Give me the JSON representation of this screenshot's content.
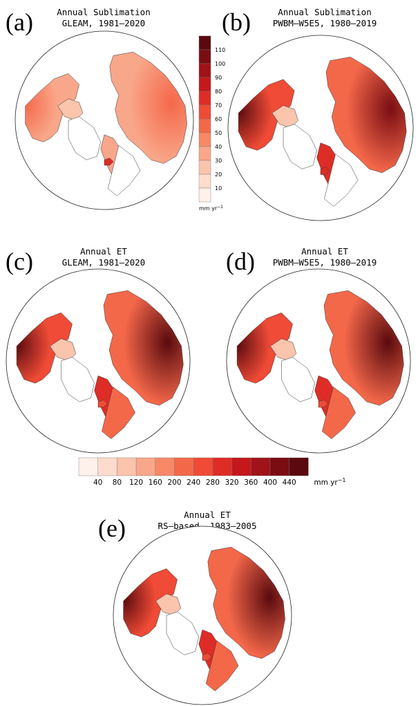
{
  "panels": {
    "a": {
      "letter": "(a)",
      "title1": "Annual Sublimation",
      "title2": "GLEAM, 1981–2020"
    },
    "b": {
      "letter": "(b)",
      "title1": "Annual Sublimation",
      "title2": "PWBM–W5E5, 1980–2019"
    },
    "c": {
      "letter": "(c)",
      "title1": "Annual ET",
      "title2": "GLEAM, 1981–2020"
    },
    "d": {
      "letter": "(d)",
      "title1": "Annual ET",
      "title2": "PWBM–W5E5, 1980–2019"
    },
    "e": {
      "letter": "(e)",
      "title1": "Annual ET",
      "title2": "RS–based, 1983–2005"
    }
  },
  "sublimation_colorbar": {
    "ticks": [
      "110",
      "100",
      "90",
      "80",
      "70",
      "60",
      "50",
      "40",
      "30",
      "20",
      "10"
    ],
    "unit": "mm yr",
    "unit_exp": "−1",
    "colors": [
      "#5a0a0e",
      "#7a0d12",
      "#a01318",
      "#c4181c",
      "#de2d26",
      "#ef4b36",
      "#f4684a",
      "#f78868",
      "#f9a78a",
      "#fbc4ad",
      "#fddccd",
      "#fef0ea"
    ]
  },
  "et_colorbar": {
    "ticks": [
      "40",
      "80",
      "120",
      "160",
      "200",
      "240",
      "280",
      "320",
      "360",
      "400",
      "440"
    ],
    "unit": "mm yr",
    "unit_exp": "−1",
    "colors": [
      "#fef0ea",
      "#fddccd",
      "#fbc4ad",
      "#f9a78a",
      "#f78868",
      "#f4684a",
      "#ef4b36",
      "#de2d26",
      "#c4181c",
      "#a01318",
      "#7a0d12",
      "#5a0a0e"
    ]
  }
}
